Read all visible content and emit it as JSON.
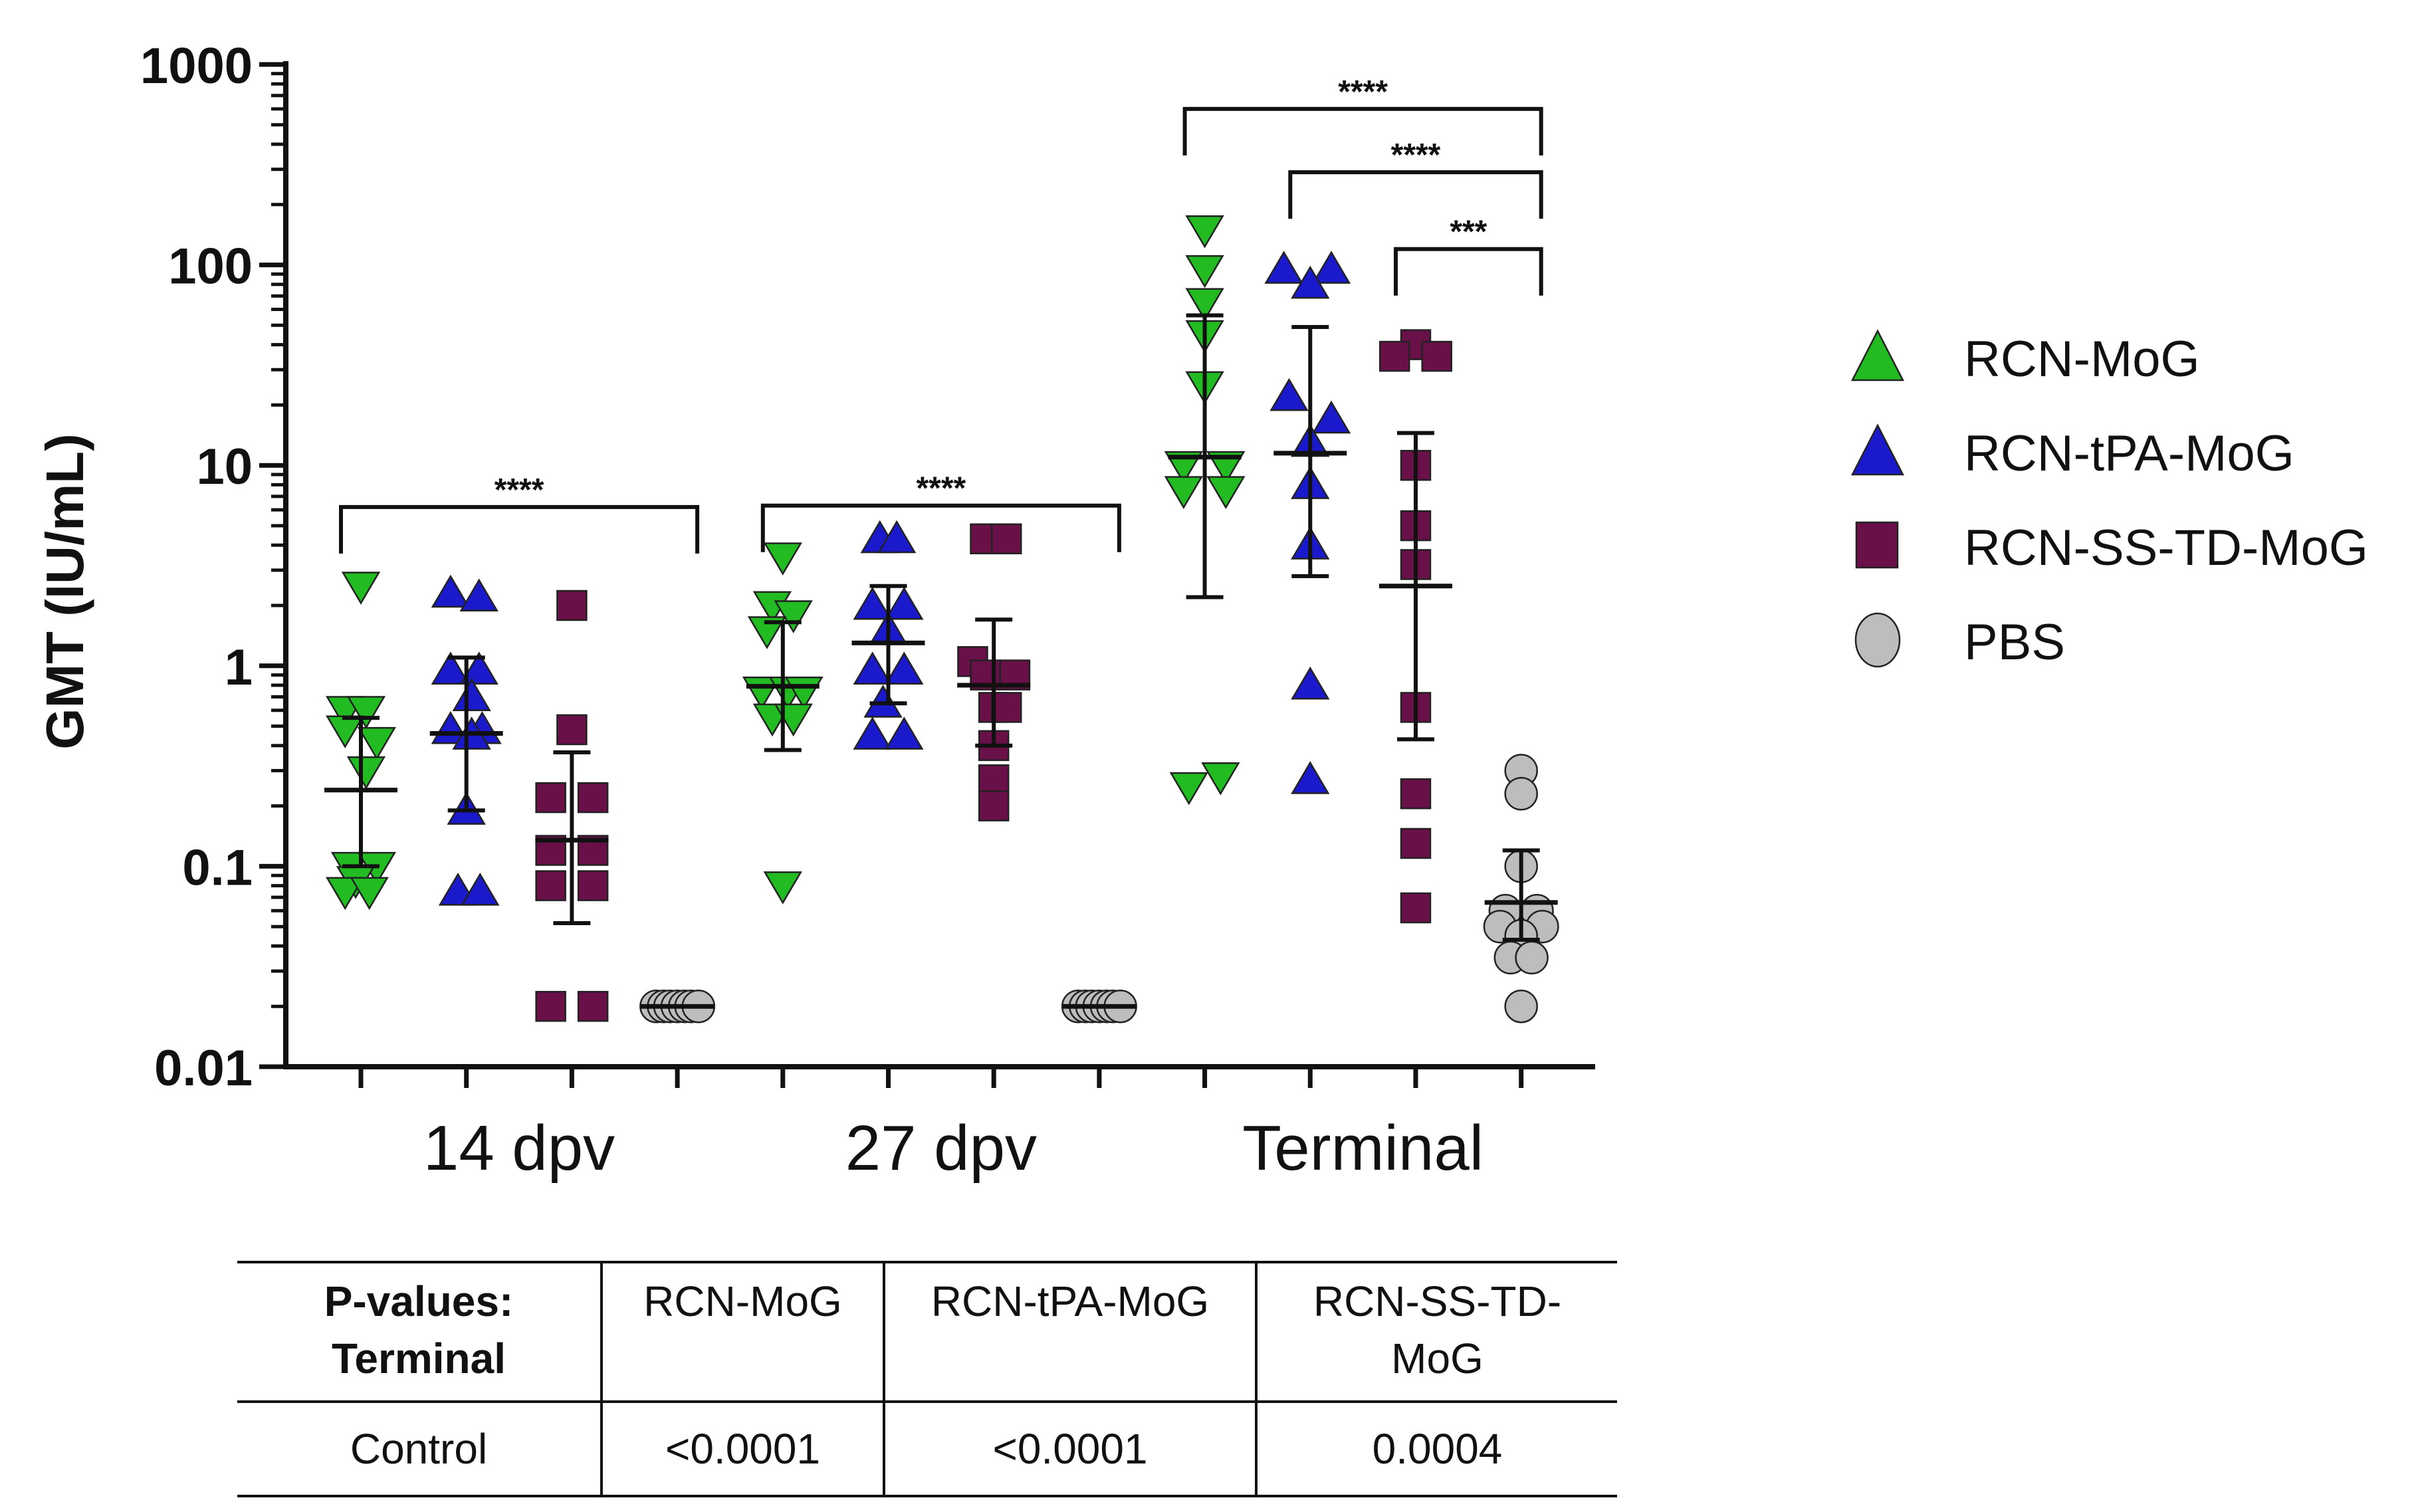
{
  "chart_data": {
    "type": "scatter",
    "yscale": "log",
    "ylabel": "GMT (IU/mL)",
    "ylim": [
      0.01,
      1000
    ],
    "yticks": [
      {
        "value": 0.01,
        "label": "0.01"
      },
      {
        "value": 0.1,
        "label": "0.1"
      },
      {
        "value": 1,
        "label": "1"
      },
      {
        "value": 10,
        "label": "10"
      },
      {
        "value": 100,
        "label": "100"
      },
      {
        "value": 1000,
        "label": "1000"
      }
    ],
    "groups": [
      {
        "label": "14 dpv",
        "columns": [
          0,
          1,
          2,
          3
        ]
      },
      {
        "label": "27 dpv",
        "columns": [
          4,
          5,
          6,
          7
        ]
      },
      {
        "label": "Terminal",
        "columns": [
          8,
          9,
          10,
          11
        ]
      }
    ],
    "legend": [
      {
        "name": "RCN-MoG",
        "marker": "triangle-up",
        "color": "#22bb22"
      },
      {
        "name": "RCN-tPA-MoG",
        "marker": "triangle-up",
        "color": "#1a1acc"
      },
      {
        "name": "RCN-SS-TD-MoG",
        "marker": "square",
        "color": "#6a1048"
      },
      {
        "name": "PBS",
        "marker": "circle",
        "color": "#bdbdbd"
      }
    ],
    "series": [
      {
        "name": "RCN-MoG 14 dpv",
        "column": 0,
        "marker": "triangle-down",
        "color": "#22bb22",
        "mean": 0.24,
        "err": [
          0.1,
          0.55
        ],
        "points": [
          [
            0,
            2.5
          ],
          [
            -0.15,
            0.6
          ],
          [
            0.05,
            0.6
          ],
          [
            -0.15,
            0.48
          ],
          [
            0.15,
            0.42
          ],
          [
            0.05,
            0.3
          ],
          [
            -0.1,
            0.1
          ],
          [
            0.15,
            0.1
          ],
          [
            -0.05,
            0.085
          ],
          [
            -0.15,
            0.075
          ],
          [
            0.08,
            0.075
          ]
        ]
      },
      {
        "name": "RCN-tPA-MoG 14 dpv",
        "column": 1,
        "marker": "triangle-up",
        "color": "#1a1acc",
        "mean": 0.46,
        "err": [
          0.19,
          1.1
        ],
        "points": [
          [
            -0.15,
            2.3
          ],
          [
            0.12,
            2.2
          ],
          [
            -0.15,
            0.95
          ],
          [
            0.12,
            0.95
          ],
          [
            0.05,
            0.7
          ],
          [
            -0.15,
            0.48
          ],
          [
            0.15,
            0.48
          ],
          [
            0.05,
            0.45
          ],
          [
            0,
            0.19
          ],
          [
            -0.08,
            0.075
          ],
          [
            0.13,
            0.075
          ]
        ]
      },
      {
        "name": "RCN-SS-TD-MoG 14 dpv",
        "column": 2,
        "marker": "square",
        "color": "#6a1048",
        "mean": 0.135,
        "err": [
          0.052,
          0.37
        ],
        "points": [
          [
            0,
            2.0
          ],
          [
            0,
            0.48
          ],
          [
            -0.2,
            0.22
          ],
          [
            0.2,
            0.22
          ],
          [
            -0.2,
            0.12
          ],
          [
            0.2,
            0.12
          ],
          [
            -0.2,
            0.08
          ],
          [
            0.2,
            0.08
          ],
          [
            -0.2,
            0.02
          ],
          [
            0.2,
            0.02
          ]
        ]
      },
      {
        "name": "PBS 14 dpv",
        "column": 3,
        "marker": "circle",
        "color": "#bdbdbd",
        "mean": 0.02,
        "err": [
          0.02,
          0.02
        ],
        "points": [
          [
            -0.2,
            0.02
          ],
          [
            -0.13,
            0.02
          ],
          [
            -0.07,
            0.02
          ],
          [
            0,
            0.02
          ],
          [
            0.07,
            0.02
          ],
          [
            0.13,
            0.02
          ],
          [
            0.2,
            0.02
          ]
        ]
      },
      {
        "name": "RCN-MoG 27 dpv",
        "column": 4,
        "marker": "triangle-down",
        "color": "#22bb22",
        "mean": 0.79,
        "err": [
          0.38,
          1.65
        ],
        "points": [
          [
            0,
            3.5
          ],
          [
            -0.1,
            2.0
          ],
          [
            0.1,
            1.8
          ],
          [
            -0.15,
            1.5
          ],
          [
            -0.2,
            0.75
          ],
          [
            0.05,
            0.75
          ],
          [
            0.2,
            0.75
          ],
          [
            -0.1,
            0.55
          ],
          [
            0.1,
            0.55
          ],
          [
            0,
            0.08
          ]
        ]
      },
      {
        "name": "RCN-tPA-MoG 27 dpv",
        "column": 5,
        "marker": "triangle-up",
        "color": "#1a1acc",
        "mean": 1.3,
        "err": [
          0.65,
          2.5
        ],
        "points": [
          [
            -0.08,
            4.3
          ],
          [
            0.08,
            4.3
          ],
          [
            -0.15,
            2.0
          ],
          [
            0.15,
            2.0
          ],
          [
            0,
            1.5
          ],
          [
            -0.15,
            0.95
          ],
          [
            0.15,
            0.95
          ],
          [
            -0.05,
            0.65
          ],
          [
            -0.15,
            0.45
          ],
          [
            0.15,
            0.45
          ]
        ]
      },
      {
        "name": "RCN-SS-TD-MoG 27 dpv",
        "column": 6,
        "marker": "square",
        "color": "#6a1048",
        "mean": 0.8,
        "err": [
          0.4,
          1.7
        ],
        "points": [
          [
            -0.08,
            4.3
          ],
          [
            0.12,
            4.3
          ],
          [
            -0.2,
            1.05
          ],
          [
            0.2,
            0.9
          ],
          [
            -0.08,
            0.9
          ],
          [
            0,
            0.62
          ],
          [
            0.12,
            0.62
          ],
          [
            0,
            0.4
          ],
          [
            0,
            0.27
          ],
          [
            0,
            0.2
          ]
        ]
      },
      {
        "name": "PBS 27 dpv",
        "column": 7,
        "marker": "circle",
        "color": "#bdbdbd",
        "mean": 0.02,
        "err": [
          0.02,
          0.02
        ],
        "points": [
          [
            -0.2,
            0.02
          ],
          [
            -0.13,
            0.02
          ],
          [
            -0.07,
            0.02
          ],
          [
            0,
            0.02
          ],
          [
            0.07,
            0.02
          ],
          [
            0.13,
            0.02
          ],
          [
            0.2,
            0.02
          ]
        ]
      },
      {
        "name": "RCN-MoG Terminal",
        "column": 8,
        "marker": "triangle-down",
        "color": "#22bb22",
        "mean": 11,
        "err": [
          2.2,
          56
        ],
        "points": [
          [
            0,
            150
          ],
          [
            0,
            95
          ],
          [
            0,
            65
          ],
          [
            0,
            45
          ],
          [
            0,
            25
          ],
          [
            -0.2,
            10
          ],
          [
            0.2,
            10
          ],
          [
            -0.2,
            7.5
          ],
          [
            0.2,
            7.5
          ],
          [
            -0.15,
            0.25
          ],
          [
            0.15,
            0.28
          ]
        ]
      },
      {
        "name": "RCN-tPA-MoG Terminal",
        "column": 9,
        "marker": "triangle-up",
        "color": "#1a1acc",
        "mean": 11.5,
        "err": [
          2.8,
          49
        ],
        "points": [
          [
            -0.25,
            95
          ],
          [
            0.2,
            95
          ],
          [
            0,
            80
          ],
          [
            -0.2,
            22
          ],
          [
            0.2,
            17
          ],
          [
            0,
            13
          ],
          [
            0,
            8
          ],
          [
            0,
            4
          ],
          [
            0,
            0.8
          ],
          [
            0,
            0.27
          ]
        ]
      },
      {
        "name": "RCN-SS-TD-MoG Terminal",
        "column": 10,
        "marker": "square",
        "color": "#6a1048",
        "mean": 2.5,
        "err": [
          0.43,
          14.5
        ],
        "points": [
          [
            0,
            40
          ],
          [
            -0.2,
            35
          ],
          [
            0.2,
            35
          ],
          [
            0,
            10
          ],
          [
            0,
            5
          ],
          [
            0,
            3.2
          ],
          [
            0,
            0.62
          ],
          [
            0,
            0.23
          ],
          [
            0,
            0.13
          ],
          [
            0,
            0.062
          ]
        ]
      },
      {
        "name": "PBS Terminal",
        "column": 11,
        "marker": "circle",
        "color": "#bdbdbd",
        "mean": 0.066,
        "err": [
          0.043,
          0.12
        ],
        "points": [
          [
            0,
            0.3
          ],
          [
            0,
            0.23
          ],
          [
            0,
            0.1
          ],
          [
            -0.15,
            0.06
          ],
          [
            0.15,
            0.06
          ],
          [
            -0.2,
            0.05
          ],
          [
            0.2,
            0.05
          ],
          [
            0,
            0.045
          ],
          [
            -0.1,
            0.035
          ],
          [
            0.1,
            0.035
          ],
          [
            0,
            0.02
          ]
        ]
      }
    ],
    "significance": [
      {
        "from": 0,
        "to": 3,
        "at": 6.2,
        "label": "****"
      },
      {
        "from": 4,
        "to": 7,
        "at": 6.3,
        "label": "****"
      },
      {
        "from": 8,
        "to": 11,
        "at": 600,
        "label": "****"
      },
      {
        "from": 9,
        "to": 11,
        "at": 290,
        "label": "****"
      },
      {
        "from": 10,
        "to": 11,
        "at": 120,
        "label": "***"
      }
    ]
  },
  "table": {
    "header": [
      "P-values:\nTerminal",
      "RCN-MoG",
      "RCN-tPA-MoG",
      "RCN-SS-TD-\nMoG"
    ],
    "row": [
      "Control",
      "<0.0001",
      "<0.0001",
      "0.0004"
    ]
  }
}
